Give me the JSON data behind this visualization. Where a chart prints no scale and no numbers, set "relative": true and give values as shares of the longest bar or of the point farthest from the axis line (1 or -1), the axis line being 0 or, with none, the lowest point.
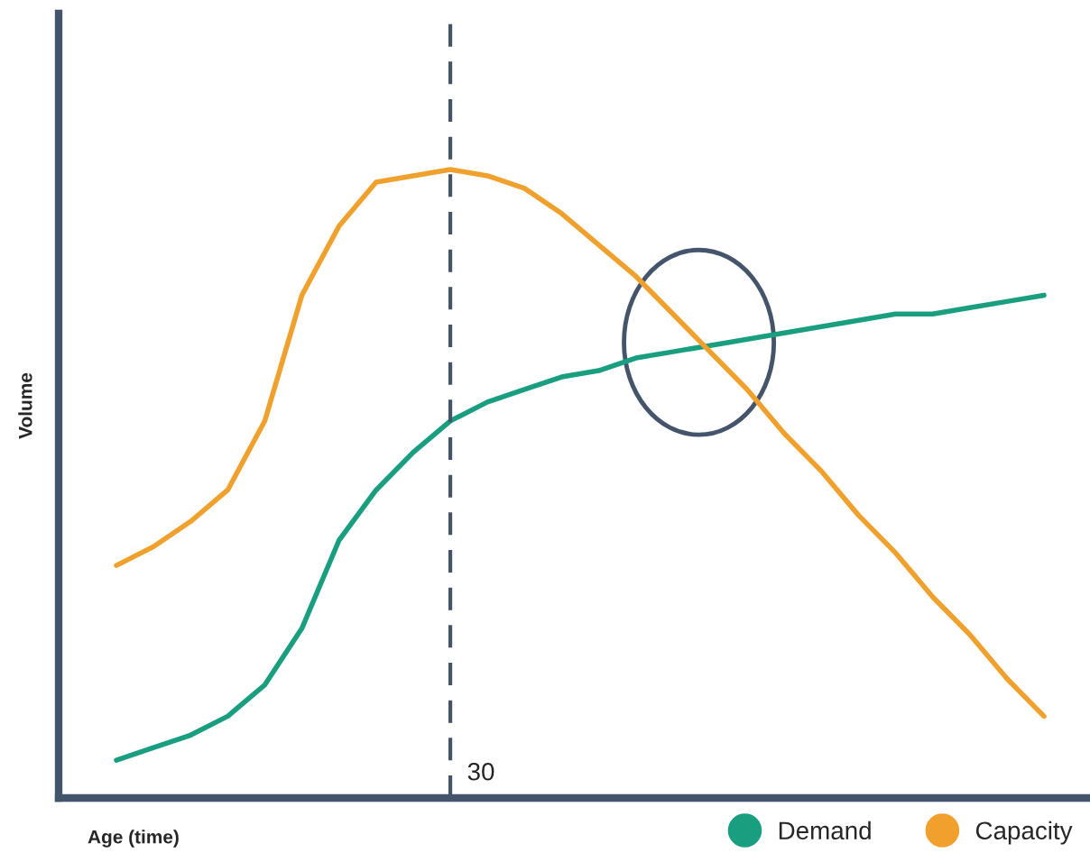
{
  "chart_data": {
    "type": "line",
    "relative": true,
    "xlabel": "Age (time)",
    "ylabel": "Volume",
    "categories": [
      null,
      null,
      null,
      null,
      null,
      null,
      null,
      null,
      null,
      null,
      null,
      null,
      null,
      null,
      null,
      null,
      null,
      null,
      null,
      null,
      null,
      null,
      null,
      null,
      null,
      null
    ],
    "series": [
      {
        "name": "Demand",
        "color": "#1a9e80",
        "values": [
          0.06,
          0.08,
          0.1,
          0.13,
          0.18,
          0.27,
          0.41,
          0.49,
          0.55,
          0.6,
          0.63,
          0.65,
          0.67,
          0.68,
          0.7,
          0.71,
          0.72,
          0.73,
          0.74,
          0.75,
          0.76,
          0.77,
          0.77,
          0.78,
          0.79,
          0.8
        ]
      },
      {
        "name": "Capacity",
        "color": "#f0a02c",
        "values": [
          0.37,
          0.4,
          0.44,
          0.49,
          0.6,
          0.8,
          0.91,
          0.98,
          0.99,
          1.0,
          0.99,
          0.97,
          0.93,
          0.88,
          0.83,
          0.77,
          0.71,
          0.65,
          0.58,
          0.52,
          0.45,
          0.39,
          0.32,
          0.26,
          0.19,
          0.13
        ]
      }
    ],
    "annotations": [
      "30"
    ],
    "legend": "bottom right",
    "line_style": "solid",
    "marker": "none"
  }
}
